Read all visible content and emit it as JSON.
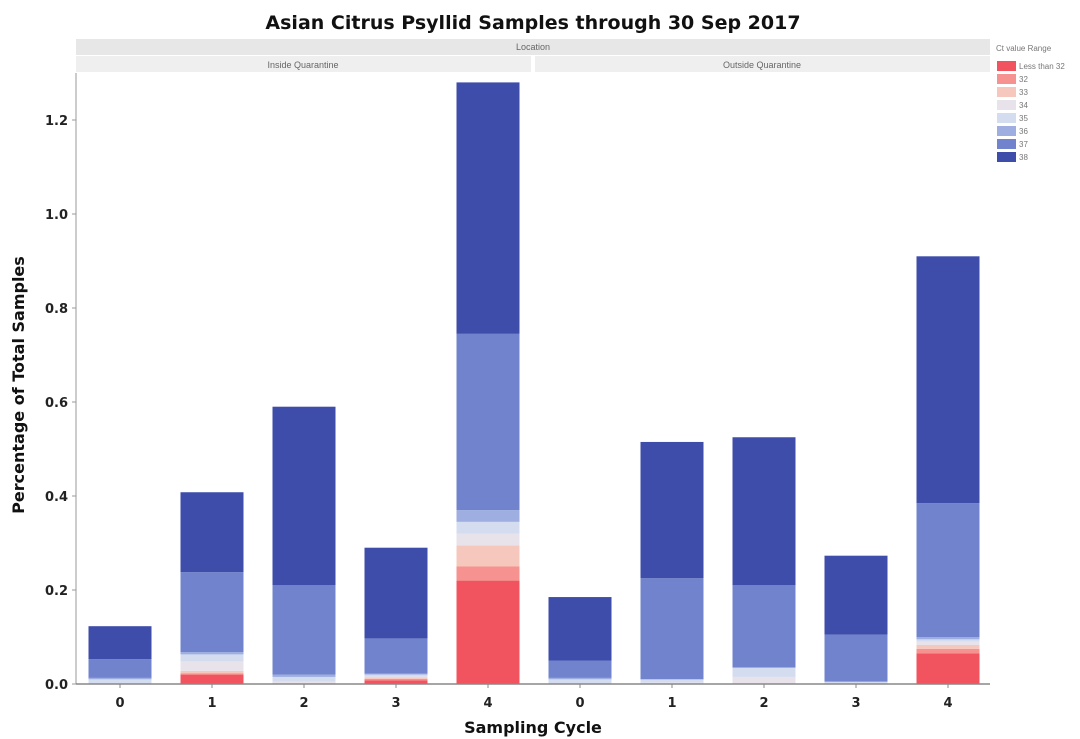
{
  "chart_data": {
    "type": "bar",
    "stacked": true,
    "title": "Asian Citrus Psyllid Samples through 30 Sep 2017",
    "xlabel": "Sampling Cycle",
    "ylabel": "Percentage of Total Samples",
    "ylim": [
      0,
      1.3
    ],
    "yticks": [
      "0.0",
      "0.2",
      "0.4",
      "0.6",
      "0.8",
      "1.0",
      "1.2"
    ],
    "grid": false,
    "facet_title": "Location",
    "facets": [
      {
        "label": "Inside Quarantine",
        "categories": [
          "0",
          "1",
          "2",
          "3",
          "4"
        ]
      },
      {
        "label": "Outside Quarantine",
        "categories": [
          "0",
          "1",
          "2",
          "3",
          "4"
        ]
      }
    ],
    "legend": {
      "title": "Ct value Range",
      "position": "top-right",
      "entries": [
        "Less than 32",
        "32",
        "33",
        "34",
        "35",
        "36",
        "37",
        "38"
      ]
    },
    "series": [
      {
        "name": "Less than 32",
        "color": "#f2545f",
        "values": [
          0.0,
          0.02,
          0.0,
          0.008,
          0.22,
          0.0,
          0.0,
          0.0,
          0.0,
          0.065
        ]
      },
      {
        "name": "32",
        "color": "#f6928f",
        "values": [
          0.0,
          0.003,
          0.0,
          0.003,
          0.03,
          0.0,
          0.0,
          0.0,
          0.0,
          0.01
        ]
      },
      {
        "name": "33",
        "color": "#f6c8bd",
        "values": [
          0.0,
          0.005,
          0.0,
          0.003,
          0.045,
          0.0,
          0.0,
          0.0,
          0.0,
          0.008
        ]
      },
      {
        "name": "34",
        "color": "#e8e3ea",
        "values": [
          0.0,
          0.02,
          0.005,
          0.002,
          0.025,
          0.0,
          0.003,
          0.015,
          0.0,
          0.007
        ]
      },
      {
        "name": "35",
        "color": "#d4dcf0",
        "values": [
          0.01,
          0.015,
          0.01,
          0.004,
          0.025,
          0.01,
          0.007,
          0.02,
          0.005,
          0.005
        ]
      },
      {
        "name": "36",
        "color": "#9eaee0",
        "values": [
          0.003,
          0.005,
          0.005,
          0.002,
          0.025,
          0.003,
          0.0,
          0.0,
          0.0,
          0.005
        ]
      },
      {
        "name": "37",
        "color": "#7183cc",
        "values": [
          0.04,
          0.17,
          0.19,
          0.075,
          0.375,
          0.037,
          0.215,
          0.175,
          0.1,
          0.285
        ]
      },
      {
        "name": "38",
        "color": "#3f4daa",
        "values": [
          0.07,
          0.17,
          0.38,
          0.193,
          0.535,
          0.135,
          0.29,
          0.315,
          0.168,
          0.525
        ]
      }
    ]
  }
}
